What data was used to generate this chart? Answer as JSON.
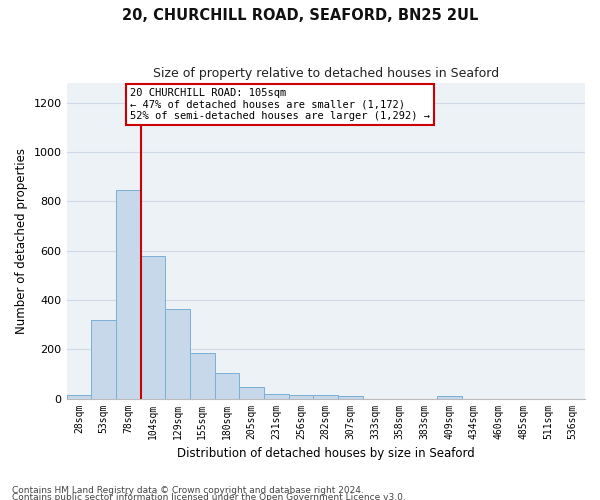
{
  "title1": "20, CHURCHILL ROAD, SEAFORD, BN25 2UL",
  "title2": "Size of property relative to detached houses in Seaford",
  "xlabel": "Distribution of detached houses by size in Seaford",
  "ylabel": "Number of detached properties",
  "footnote1": "Contains HM Land Registry data © Crown copyright and database right 2024.",
  "footnote2": "Contains public sector information licensed under the Open Government Licence v3.0.",
  "annotation_line1": "20 CHURCHILL ROAD: 105sqm",
  "annotation_line2": "← 47% of detached houses are smaller (1,172)",
  "annotation_line3": "52% of semi-detached houses are larger (1,292) →",
  "bar_color": "#c8d8eb",
  "bar_edge_color": "#7aafd4",
  "highlight_color": "#cc0000",
  "categories": [
    "28sqm",
    "53sqm",
    "78sqm",
    "104sqm",
    "129sqm",
    "155sqm",
    "180sqm",
    "205sqm",
    "231sqm",
    "256sqm",
    "282sqm",
    "307sqm",
    "333sqm",
    "358sqm",
    "383sqm",
    "409sqm",
    "434sqm",
    "460sqm",
    "485sqm",
    "511sqm",
    "536sqm"
  ],
  "values": [
    15,
    320,
    845,
    580,
    365,
    185,
    105,
    45,
    20,
    15,
    15,
    10,
    0,
    0,
    0,
    10,
    0,
    0,
    0,
    0,
    0
  ],
  "ylim": [
    0,
    1280
  ],
  "yticks": [
    0,
    200,
    400,
    600,
    800,
    1000,
    1200
  ],
  "highlight_bar_index": 3,
  "grid_color": "#d0dae6",
  "background_color": "#edf2f7",
  "title1_fontsize": 10.5,
  "title2_fontsize": 9,
  "ylabel_fontsize": 8.5,
  "xlabel_fontsize": 8.5,
  "tick_fontsize": 7,
  "annot_fontsize": 7.5,
  "footnote_fontsize": 6.5
}
